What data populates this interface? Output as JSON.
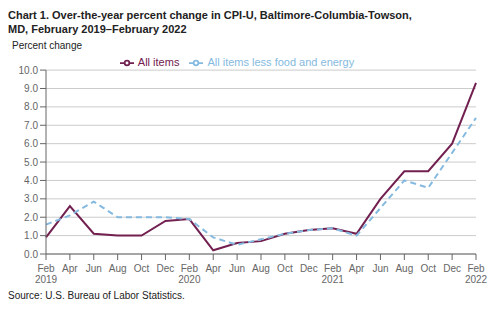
{
  "chart_data": {
    "type": "line",
    "title": "Chart 1. Over-the-year percent change in CPI-U, Baltimore-Columbia-Towson,\nMD, February 2019–February 2022",
    "ylabel": "Percent change",
    "annotations": [
      "Source: U.S. Bureau of Labor Statistics."
    ],
    "categories": [
      "Feb\n2019",
      "Apr",
      "Jun",
      "Aug",
      "Oct",
      "Dec",
      "Feb\n2020",
      "Apr",
      "Jun",
      "Aug",
      "Oct",
      "Dec",
      "Feb\n2021",
      "Apr",
      "Jun",
      "Aug",
      "Oct",
      "Dec",
      "Feb\n2022"
    ],
    "series": [
      {
        "name": "All items",
        "color": "#722050",
        "line_style": "solid",
        "values": [
          0.9,
          2.6,
          1.1,
          1.0,
          1.0,
          1.8,
          1.9,
          0.2,
          0.6,
          0.7,
          1.1,
          1.3,
          1.4,
          1.1,
          3.0,
          4.5,
          4.5,
          6.0,
          9.3
        ]
      },
      {
        "name": "All items less food and energy",
        "color": "#85bae0",
        "line_style": "dashed",
        "values": [
          1.6,
          2.1,
          2.85,
          2.0,
          2.0,
          2.0,
          1.9,
          0.9,
          0.5,
          0.8,
          1.1,
          1.3,
          1.4,
          1.0,
          2.5,
          4.0,
          3.6,
          5.5,
          7.4
        ]
      }
    ],
    "ylim": [
      0.0,
      10.0
    ],
    "yticks": [
      {
        "value": 0.0,
        "label": "0.0"
      },
      {
        "value": 1.0,
        "label": "1.0"
      },
      {
        "value": 2.0,
        "label": "2.0"
      },
      {
        "value": 3.0,
        "label": "3.0"
      },
      {
        "value": 4.0,
        "label": "4.0"
      },
      {
        "value": 5.0,
        "label": "5.0"
      },
      {
        "value": 6.0,
        "label": "6.0"
      },
      {
        "value": 7.0,
        "label": "7.0"
      },
      {
        "value": 8.0,
        "label": "8.0"
      },
      {
        "value": 9.0,
        "label": "9.0"
      },
      {
        "value": 10.0,
        "label": "10.0"
      }
    ],
    "grid": true,
    "legend": "top"
  }
}
